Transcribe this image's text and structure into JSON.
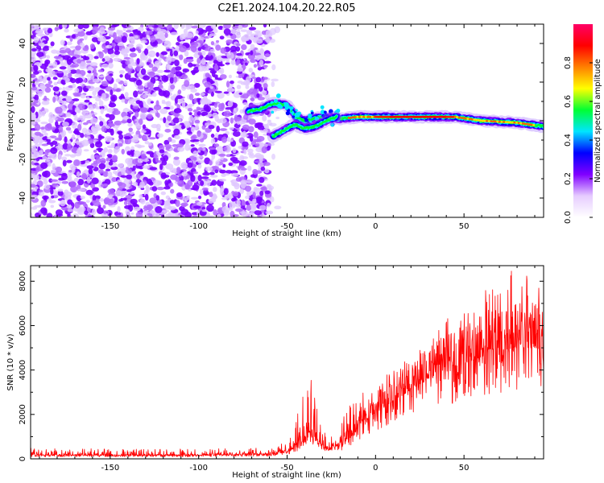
{
  "chart_data": [
    {
      "type": "heatmap",
      "title": "C2E1.2024.104.20.22.R05",
      "xlabel": "Height of straight line (km)",
      "ylabel": "Frequency (Hz)",
      "xlim": [
        -195,
        95
      ],
      "ylim": [
        -50,
        50
      ],
      "x_ticks": [
        -150,
        -100,
        -50,
        0,
        50
      ],
      "y_ticks": [
        -40,
        -20,
        0,
        20,
        40
      ],
      "grid": false,
      "colorbar": {
        "label": "Normalized spectral amplitude",
        "range": [
          0,
          1
        ],
        "ticks": [
          "0.0",
          "0.2",
          "0.4",
          "0.6",
          "0.8"
        ],
        "colormap": [
          "#ffffff",
          "#e6ccff",
          "#8000ff",
          "#0000ff",
          "#00e5ff",
          "#00ff33",
          "#ffff00",
          "#ff8000",
          "#ff0000",
          "#ff0066"
        ]
      },
      "features": {
        "noise_region_x": [
          -195,
          -60
        ],
        "noise_fade_end_x": -55,
        "ridge": [
          {
            "x": -72,
            "freq": 5
          },
          {
            "x": -65,
            "freq": 6
          },
          {
            "x": -58,
            "freq": 9
          },
          {
            "x": -50,
            "freq": 8
          },
          {
            "x": -45,
            "freq": 2
          },
          {
            "x": -40,
            "freq": 0
          },
          {
            "x": -35,
            "freq": 1
          },
          {
            "x": -30,
            "freq": 2
          },
          {
            "x": -20,
            "freq": 1
          },
          {
            "x": -10,
            "freq": 2
          },
          {
            "x": 0,
            "freq": 2
          },
          {
            "x": 20,
            "freq": 2
          },
          {
            "x": 45,
            "freq": 2
          },
          {
            "x": 60,
            "freq": 0
          },
          {
            "x": 80,
            "freq": -1
          },
          {
            "x": 95,
            "freq": -3
          }
        ],
        "lower_branch": [
          {
            "x": -58,
            "freq": -8
          },
          {
            "x": -52,
            "freq": -5
          },
          {
            "x": -46,
            "freq": -2
          },
          {
            "x": -40,
            "freq": -4
          },
          {
            "x": -34,
            "freq": -3
          },
          {
            "x": -28,
            "freq": 0
          },
          {
            "x": -22,
            "freq": 2
          }
        ]
      }
    },
    {
      "type": "line",
      "title": "",
      "xlabel": "Height of straight line (km)",
      "ylabel": "SNR (10 * v/v)",
      "xlim": [
        -195,
        95
      ],
      "ylim": [
        0,
        8700
      ],
      "x_ticks": [
        -150,
        -100,
        -50,
        0,
        50
      ],
      "y_ticks": [
        0,
        2000,
        4000,
        6000,
        8000
      ],
      "grid": false,
      "series": [
        {
          "color": "#ff0000",
          "envelope": {
            "x": [
              -195,
              -150,
              -100,
              -60,
              -50,
              -45,
              -40,
              -38,
              -35,
              -30,
              -25,
              -20,
              -15,
              -10,
              -5,
              0,
              10,
              20,
              30,
              40,
              50,
              60,
              70,
              80,
              90,
              95
            ],
            "base": [
              150,
              150,
              150,
              200,
              300,
              500,
              900,
              1200,
              900,
              500,
              400,
              600,
              900,
              1300,
              1700,
              2000,
              2600,
              3100,
              3600,
              4000,
              4300,
              4600,
              4900,
              5000,
              5000,
              5000
            ],
            "peak": [
              500,
              450,
              450,
              500,
              800,
              1600,
              4400,
              4600,
              3200,
              1400,
              1100,
              1600,
              2400,
              2900,
              3200,
              3400,
              4000,
              4700,
              5200,
              6300,
              6700,
              7500,
              8300,
              8600,
              8400,
              7000
            ]
          }
        }
      ]
    }
  ]
}
